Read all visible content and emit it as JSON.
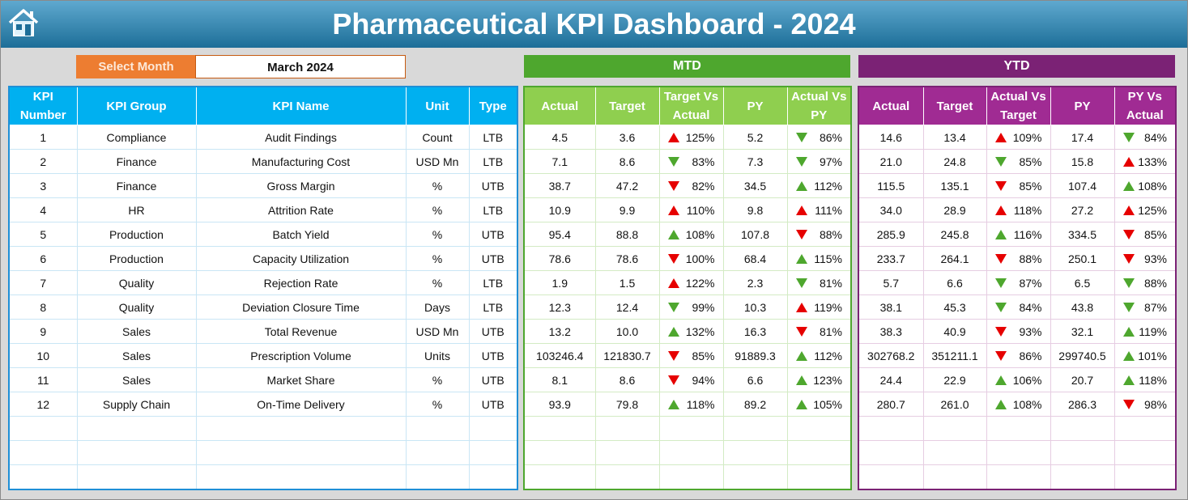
{
  "header": {
    "title": "Pharmaceutical KPI Dashboard - 2024"
  },
  "selector": {
    "label": "Select Month",
    "value": "March 2024"
  },
  "sections": {
    "mtd": "MTD",
    "ytd": "YTD"
  },
  "kpi_table": {
    "columns": [
      "KPI Number",
      "KPI Group",
      "KPI Name",
      "Unit",
      "Type"
    ],
    "rows": [
      [
        "1",
        "Compliance",
        "Audit Findings",
        "Count",
        "LTB"
      ],
      [
        "2",
        "Finance",
        "Manufacturing Cost",
        "USD Mn",
        "LTB"
      ],
      [
        "3",
        "Finance",
        "Gross Margin",
        "%",
        "UTB"
      ],
      [
        "4",
        "HR",
        "Attrition Rate",
        "%",
        "LTB"
      ],
      [
        "5",
        "Production",
        "Batch Yield",
        "%",
        "UTB"
      ],
      [
        "6",
        "Production",
        "Capacity Utilization",
        "%",
        "UTB"
      ],
      [
        "7",
        "Quality",
        "Rejection Rate",
        "%",
        "LTB"
      ],
      [
        "8",
        "Quality",
        "Deviation Closure Time",
        "Days",
        "LTB"
      ],
      [
        "9",
        "Sales",
        "Total Revenue",
        "USD Mn",
        "UTB"
      ],
      [
        "10",
        "Sales",
        "Prescription Volume",
        "Units",
        "UTB"
      ],
      [
        "11",
        "Sales",
        "Market Share",
        "%",
        "UTB"
      ],
      [
        "12",
        "Supply Chain",
        "On-Time Delivery",
        "%",
        "UTB"
      ]
    ]
  },
  "mtd_table": {
    "columns": [
      "Actual",
      "Target",
      "Target Vs Actual",
      "PY",
      "Actual Vs PY"
    ],
    "rows": [
      [
        "4.5",
        "3.6",
        {
          "label": "125%",
          "arrow": "up",
          "color": "#e60000"
        },
        "5.2",
        {
          "label": "86%",
          "arrow": "down",
          "color": "#4ea72e"
        }
      ],
      [
        "7.1",
        "8.6",
        {
          "label": "83%",
          "arrow": "down",
          "color": "#4ea72e"
        },
        "7.3",
        {
          "label": "97%",
          "arrow": "down",
          "color": "#4ea72e"
        }
      ],
      [
        "38.7",
        "47.2",
        {
          "label": "82%",
          "arrow": "down",
          "color": "#e60000"
        },
        "34.5",
        {
          "label": "112%",
          "arrow": "up",
          "color": "#4ea72e"
        }
      ],
      [
        "10.9",
        "9.9",
        {
          "label": "110%",
          "arrow": "up",
          "color": "#e60000"
        },
        "9.8",
        {
          "label": "111%",
          "arrow": "up",
          "color": "#e60000"
        }
      ],
      [
        "95.4",
        "88.8",
        {
          "label": "108%",
          "arrow": "up",
          "color": "#4ea72e"
        },
        "107.8",
        {
          "label": "88%",
          "arrow": "down",
          "color": "#e60000"
        }
      ],
      [
        "78.6",
        "78.6",
        {
          "label": "100%",
          "arrow": "down",
          "color": "#e60000"
        },
        "68.4",
        {
          "label": "115%",
          "arrow": "up",
          "color": "#4ea72e"
        }
      ],
      [
        "1.9",
        "1.5",
        {
          "label": "122%",
          "arrow": "up",
          "color": "#e60000"
        },
        "2.3",
        {
          "label": "81%",
          "arrow": "down",
          "color": "#4ea72e"
        }
      ],
      [
        "12.3",
        "12.4",
        {
          "label": "99%",
          "arrow": "down",
          "color": "#4ea72e"
        },
        "10.3",
        {
          "label": "119%",
          "arrow": "up",
          "color": "#e60000"
        }
      ],
      [
        "13.2",
        "10.0",
        {
          "label": "132%",
          "arrow": "up",
          "color": "#4ea72e"
        },
        "16.3",
        {
          "label": "81%",
          "arrow": "down",
          "color": "#e60000"
        }
      ],
      [
        "103246.4",
        "121830.7",
        {
          "label": "85%",
          "arrow": "down",
          "color": "#e60000"
        },
        "91889.3",
        {
          "label": "112%",
          "arrow": "up",
          "color": "#4ea72e"
        }
      ],
      [
        "8.1",
        "8.6",
        {
          "label": "94%",
          "arrow": "down",
          "color": "#e60000"
        },
        "6.6",
        {
          "label": "123%",
          "arrow": "up",
          "color": "#4ea72e"
        }
      ],
      [
        "93.9",
        "79.8",
        {
          "label": "118%",
          "arrow": "up",
          "color": "#4ea72e"
        },
        "89.2",
        {
          "label": "105%",
          "arrow": "up",
          "color": "#4ea72e"
        }
      ]
    ]
  },
  "ytd_table": {
    "columns": [
      "Actual",
      "Target",
      "Actual Vs Target",
      "PY",
      "PY Vs Actual"
    ],
    "rows": [
      [
        "14.6",
        "13.4",
        {
          "label": "109%",
          "arrow": "up",
          "color": "#e60000"
        },
        "17.4",
        {
          "label": "84%",
          "arrow": "down",
          "color": "#4ea72e"
        }
      ],
      [
        "21.0",
        "24.8",
        {
          "label": "85%",
          "arrow": "down",
          "color": "#4ea72e"
        },
        "15.8",
        {
          "label": "133%",
          "arrow": "up",
          "color": "#e60000"
        }
      ],
      [
        "115.5",
        "135.1",
        {
          "label": "85%",
          "arrow": "down",
          "color": "#e60000"
        },
        "107.4",
        {
          "label": "108%",
          "arrow": "up",
          "color": "#4ea72e"
        }
      ],
      [
        "34.0",
        "28.9",
        {
          "label": "118%",
          "arrow": "up",
          "color": "#e60000"
        },
        "27.2",
        {
          "label": "125%",
          "arrow": "up",
          "color": "#e60000"
        }
      ],
      [
        "285.9",
        "245.8",
        {
          "label": "116%",
          "arrow": "up",
          "color": "#4ea72e"
        },
        "334.5",
        {
          "label": "85%",
          "arrow": "down",
          "color": "#e60000"
        }
      ],
      [
        "233.7",
        "264.1",
        {
          "label": "88%",
          "arrow": "down",
          "color": "#e60000"
        },
        "250.1",
        {
          "label": "93%",
          "arrow": "down",
          "color": "#e60000"
        }
      ],
      [
        "5.7",
        "6.6",
        {
          "label": "87%",
          "arrow": "down",
          "color": "#4ea72e"
        },
        "6.5",
        {
          "label": "88%",
          "arrow": "down",
          "color": "#4ea72e"
        }
      ],
      [
        "38.1",
        "45.3",
        {
          "label": "84%",
          "arrow": "down",
          "color": "#4ea72e"
        },
        "43.8",
        {
          "label": "87%",
          "arrow": "down",
          "color": "#4ea72e"
        }
      ],
      [
        "38.3",
        "40.9",
        {
          "label": "93%",
          "arrow": "down",
          "color": "#e60000"
        },
        "32.1",
        {
          "label": "119%",
          "arrow": "up",
          "color": "#4ea72e"
        }
      ],
      [
        "302768.2",
        "351211.1",
        {
          "label": "86%",
          "arrow": "down",
          "color": "#e60000"
        },
        "299740.5",
        {
          "label": "101%",
          "arrow": "up",
          "color": "#4ea72e"
        }
      ],
      [
        "24.4",
        "22.9",
        {
          "label": "106%",
          "arrow": "up",
          "color": "#4ea72e"
        },
        "20.7",
        {
          "label": "118%",
          "arrow": "up",
          "color": "#4ea72e"
        }
      ],
      [
        "280.7",
        "261.0",
        {
          "label": "108%",
          "arrow": "up",
          "color": "#4ea72e"
        },
        "286.3",
        {
          "label": "98%",
          "arrow": "down",
          "color": "#e60000"
        }
      ]
    ]
  }
}
